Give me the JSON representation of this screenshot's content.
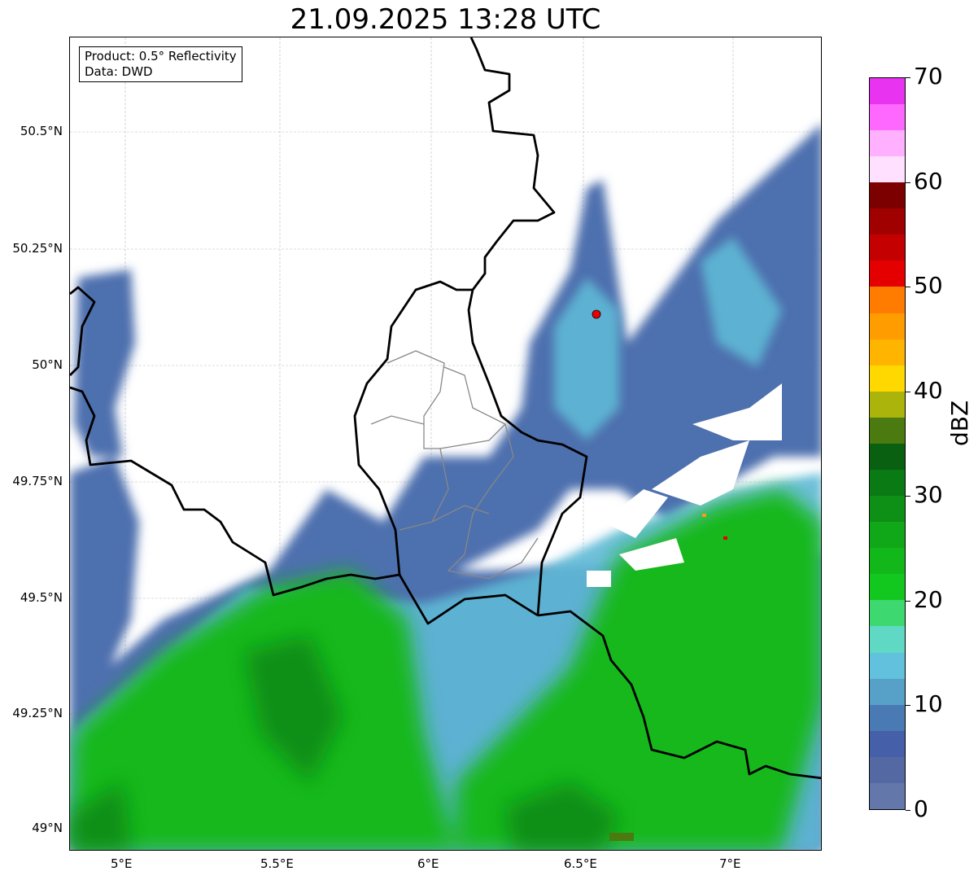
{
  "title": "21.09.2025 13:28 UTC",
  "info": {
    "product": "Product: 0.5° Reflectivity",
    "data": "Data: DWD"
  },
  "axes": {
    "lon_ticks": [
      "5°E",
      "5.5°E",
      "6°E",
      "6.5°E",
      "7°E"
    ],
    "lat_ticks": [
      "50.5°N",
      "50.25°N",
      "50°N",
      "49.75°N",
      "49.5°N",
      "49.25°N",
      "49°N"
    ]
  },
  "radar_site": {
    "name": "radar-site"
  },
  "colorbar": {
    "label": "dBZ",
    "min": 0,
    "max": 70,
    "step": 2.5,
    "ticks": [
      "0",
      "10",
      "20",
      "30",
      "40",
      "50",
      "60",
      "70"
    ],
    "colors": [
      "#6477aa",
      "#5468a3",
      "#4560a8",
      "#4a7ab4",
      "#57a0c8",
      "#62c1dc",
      "#5fd8c4",
      "#3dd870",
      "#12c81e",
      "#12b81a",
      "#10a818",
      "#0e9016",
      "#0a7a14",
      "#086010",
      "#4a7a10",
      "#aab40a",
      "#ffd800",
      "#ffb400",
      "#ff9c00",
      "#ff7c00",
      "#e40000",
      "#c40000",
      "#a00000",
      "#7c0000",
      "#ffe0ff",
      "#ffb0ff",
      "#ff68ff",
      "#e834f0"
    ]
  }
}
